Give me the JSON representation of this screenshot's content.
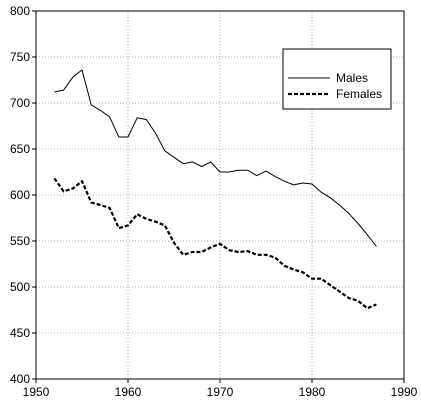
{
  "chart_data": {
    "type": "line",
    "title": "",
    "xlabel": "",
    "ylabel": "",
    "xlim": [
      1950,
      1990
    ],
    "ylim": [
      400,
      800
    ],
    "xticks": [
      1950,
      1960,
      1970,
      1980,
      1990
    ],
    "yticks": [
      400,
      450,
      500,
      550,
      600,
      650,
      700,
      750,
      800
    ],
    "xtick_labels": [
      "1950",
      "1960",
      "1970",
      "1980",
      "1990"
    ],
    "ytick_labels": [
      "400",
      "450",
      "500",
      "550",
      "600",
      "650",
      "700",
      "750",
      "800"
    ],
    "grid": true,
    "legend_position": "top-right",
    "series": [
      {
        "name": "Males",
        "style": "solid",
        "color": "#000000",
        "x": [
          1952,
          1953,
          1954,
          1955,
          1956,
          1957,
          1958,
          1959,
          1960,
          1961,
          1962,
          1963,
          1964,
          1965,
          1966,
          1967,
          1968,
          1969,
          1970,
          1971,
          1972,
          1973,
          1974,
          1975,
          1976,
          1977,
          1978,
          1979,
          1980,
          1981,
          1982,
          1983,
          1984,
          1985,
          1986,
          1987
        ],
        "values": [
          712,
          714,
          728,
          736,
          698,
          692,
          685,
          663,
          663,
          684,
          682,
          667,
          648,
          641,
          634,
          636,
          631,
          636,
          625,
          625,
          627,
          627,
          621,
          626,
          620,
          615,
          611,
          613,
          612,
          603,
          597,
          589,
          580,
          569,
          557,
          544
        ]
      },
      {
        "name": "Females",
        "style": "dashed",
        "color": "#000000",
        "x": [
          1952,
          1953,
          1954,
          1955,
          1956,
          1957,
          1958,
          1959,
          1960,
          1961,
          1962,
          1963,
          1964,
          1965,
          1966,
          1967,
          1968,
          1969,
          1970,
          1971,
          1972,
          1973,
          1974,
          1975,
          1976,
          1977,
          1978,
          1979,
          1980,
          1981,
          1982,
          1983,
          1984,
          1985,
          1986,
          1987
        ],
        "values": [
          618,
          604,
          607,
          615,
          592,
          589,
          586,
          564,
          567,
          579,
          574,
          571,
          567,
          548,
          535,
          538,
          538,
          543,
          547,
          540,
          538,
          539,
          535,
          535,
          532,
          523,
          519,
          516,
          509,
          509,
          502,
          495,
          488,
          485,
          477,
          481
        ]
      }
    ]
  }
}
